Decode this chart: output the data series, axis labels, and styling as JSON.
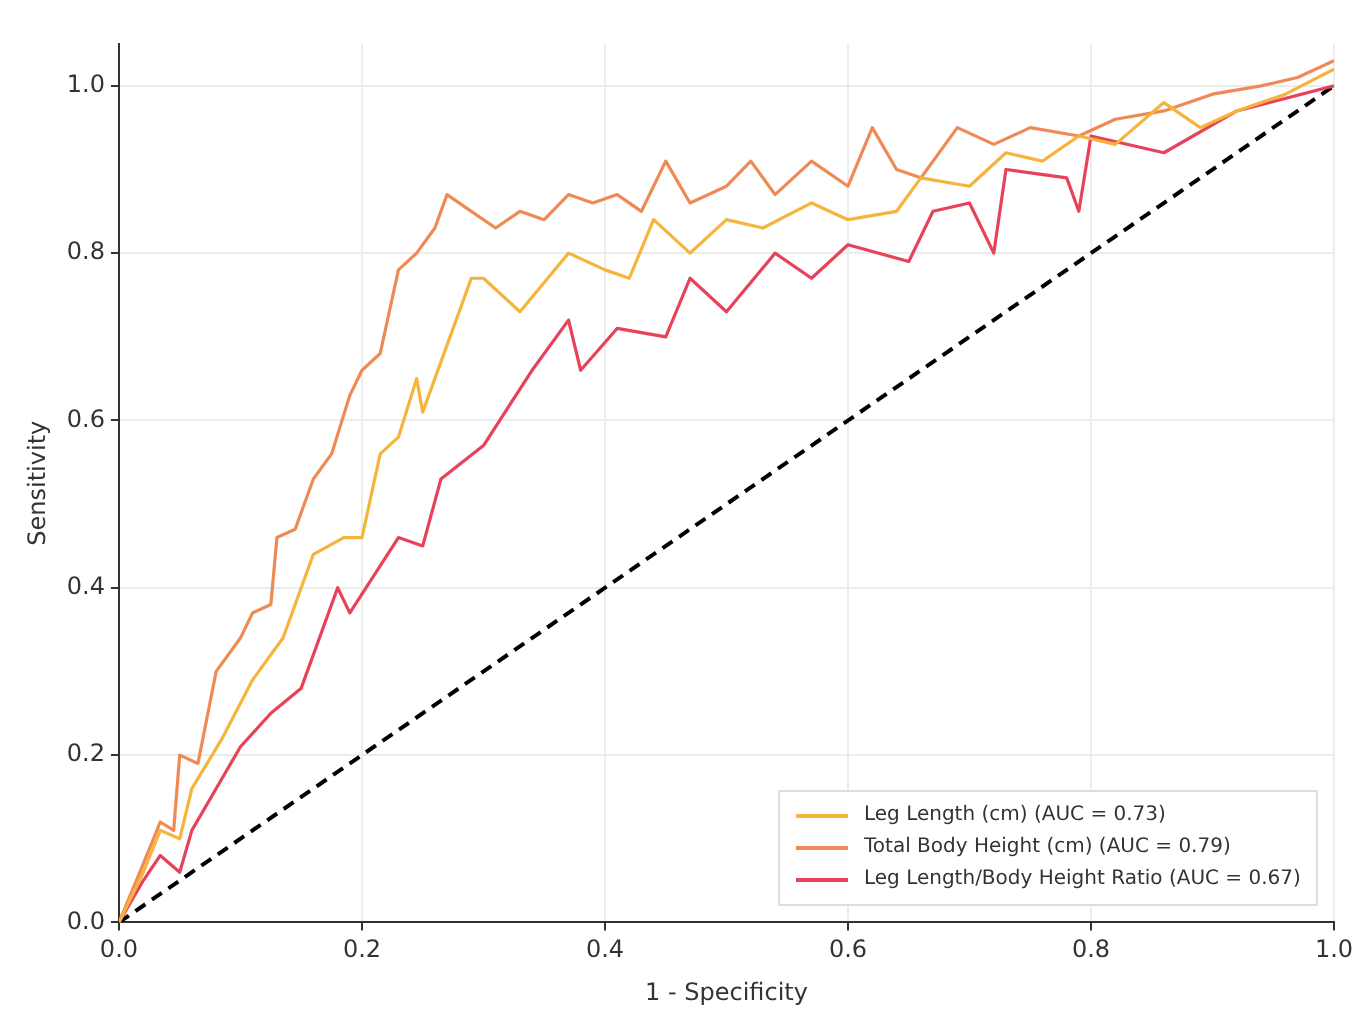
{
  "chart_data": {
    "type": "line",
    "xlabel": "1 - Specificity",
    "ylabel": "Sensitivity",
    "xlim": [
      0,
      1
    ],
    "ylim": [
      0,
      1.05
    ],
    "xticks": [
      {
        "value": 0,
        "label": "0.0"
      },
      {
        "value": 0.2,
        "label": "0.2"
      },
      {
        "value": 0.4,
        "label": "0.4"
      },
      {
        "value": 0.6,
        "label": "0.6"
      },
      {
        "value": 0.8,
        "label": "0.8"
      },
      {
        "value": 1,
        "label": "1.0"
      }
    ],
    "yticks": [
      {
        "value": 0,
        "label": "0.0"
      },
      {
        "value": 0.2,
        "label": "0.2"
      },
      {
        "value": 0.4,
        "label": "0.4"
      },
      {
        "value": 0.6,
        "label": "0.6"
      },
      {
        "value": 0.8,
        "label": "0.8"
      },
      {
        "value": 1,
        "label": "1.0"
      }
    ],
    "grid": true,
    "legend": "bottom right",
    "marker": "none",
    "series": [
      {
        "name": "Leg Length (cm) (AUC = 0.73)",
        "color": "#f5b43c",
        "x": [
          0,
          0.02,
          0.034,
          0.05,
          0.06,
          0.085,
          0.11,
          0.135,
          0.16,
          0.185,
          0.2,
          0.215,
          0.23,
          0.245,
          0.25,
          0.27,
          0.29,
          0.3,
          0.33,
          0.37,
          0.4,
          0.42,
          0.44,
          0.47,
          0.5,
          0.53,
          0.57,
          0.6,
          0.64,
          0.66,
          0.7,
          0.73,
          0.76,
          0.79,
          0.82,
          0.86,
          0.89,
          0.92,
          0.96,
          1
        ],
        "values": [
          0,
          0.06,
          0.11,
          0.1,
          0.16,
          0.22,
          0.29,
          0.34,
          0.44,
          0.46,
          0.46,
          0.56,
          0.58,
          0.65,
          0.61,
          0.69,
          0.77,
          0.77,
          0.73,
          0.8,
          0.78,
          0.77,
          0.84,
          0.8,
          0.84,
          0.83,
          0.86,
          0.84,
          0.85,
          0.89,
          0.88,
          0.92,
          0.91,
          0.94,
          0.93,
          0.98,
          0.95,
          0.97,
          0.99,
          1.02
        ]
      },
      {
        "name": "Total Body Height (cm) (AUC = 0.79)",
        "color": "#ef8a55",
        "x": [
          0,
          0.02,
          0.034,
          0.045,
          0.05,
          0.065,
          0.08,
          0.1,
          0.11,
          0.125,
          0.13,
          0.145,
          0.16,
          0.175,
          0.19,
          0.2,
          0.215,
          0.23,
          0.245,
          0.26,
          0.27,
          0.29,
          0.31,
          0.33,
          0.35,
          0.37,
          0.39,
          0.41,
          0.43,
          0.45,
          0.47,
          0.5,
          0.52,
          0.54,
          0.57,
          0.6,
          0.62,
          0.64,
          0.66,
          0.69,
          0.72,
          0.75,
          0.79,
          0.82,
          0.86,
          0.9,
          0.94,
          0.97,
          1
        ],
        "values": [
          0,
          0.07,
          0.12,
          0.11,
          0.2,
          0.19,
          0.3,
          0.34,
          0.37,
          0.38,
          0.46,
          0.47,
          0.53,
          0.56,
          0.63,
          0.66,
          0.68,
          0.78,
          0.8,
          0.83,
          0.87,
          0.85,
          0.83,
          0.85,
          0.84,
          0.87,
          0.86,
          0.87,
          0.85,
          0.91,
          0.86,
          0.88,
          0.91,
          0.87,
          0.91,
          0.88,
          0.95,
          0.9,
          0.89,
          0.95,
          0.93,
          0.95,
          0.94,
          0.96,
          0.97,
          0.99,
          1,
          1.01,
          1.03
        ]
      },
      {
        "name": "Leg Length/Body Height Ratio (AUC = 0.67)",
        "color": "#e8415a",
        "x": [
          0,
          0.02,
          0.034,
          0.05,
          0.06,
          0.08,
          0.1,
          0.125,
          0.15,
          0.18,
          0.19,
          0.23,
          0.25,
          0.265,
          0.3,
          0.34,
          0.37,
          0.38,
          0.41,
          0.45,
          0.47,
          0.5,
          0.54,
          0.57,
          0.6,
          0.65,
          0.67,
          0.7,
          0.72,
          0.73,
          0.78,
          0.79,
          0.8,
          0.86,
          0.92,
          1
        ],
        "values": [
          0,
          0.05,
          0.08,
          0.06,
          0.11,
          0.16,
          0.21,
          0.25,
          0.28,
          0.4,
          0.37,
          0.46,
          0.45,
          0.53,
          0.57,
          0.66,
          0.72,
          0.66,
          0.71,
          0.7,
          0.77,
          0.73,
          0.8,
          0.77,
          0.81,
          0.79,
          0.85,
          0.86,
          0.8,
          0.9,
          0.89,
          0.85,
          0.94,
          0.92,
          0.97,
          1
        ]
      },
      {
        "color": "#000000",
        "x": [
          0,
          1
        ],
        "values": [
          0,
          1
        ],
        "line_style": "dashed"
      }
    ]
  }
}
